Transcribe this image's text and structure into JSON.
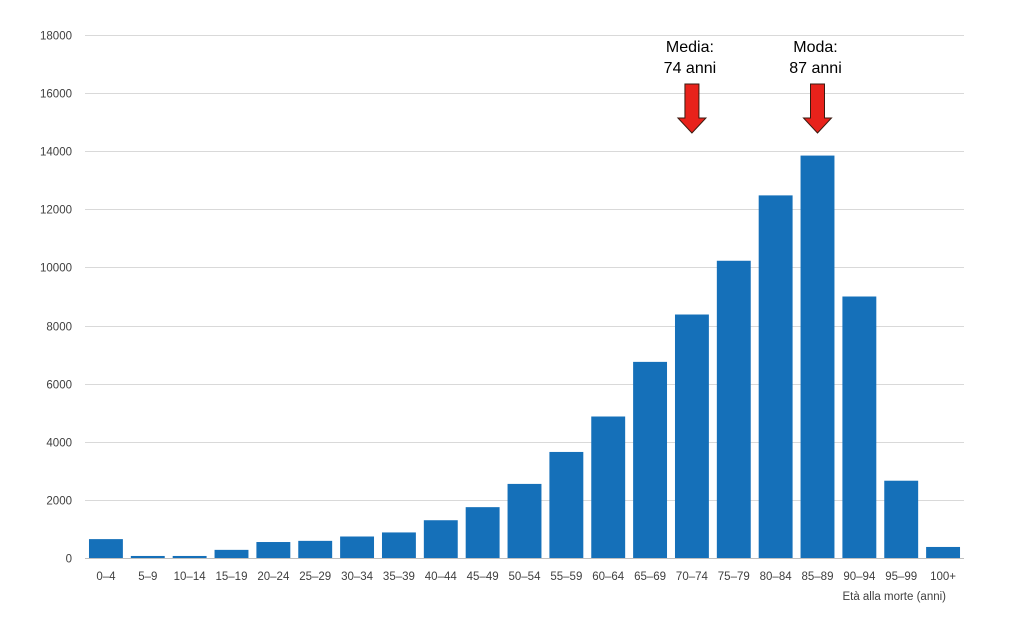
{
  "chart_data": {
    "type": "bar",
    "xlabel": "Età alla morte (anni)",
    "ylabel": "",
    "ylim": [
      0,
      18000
    ],
    "yticks": [
      0,
      2000,
      4000,
      6000,
      8000,
      10000,
      12000,
      14000,
      16000,
      18000
    ],
    "grid": "horizontal",
    "legend": "none",
    "categories": [
      "0–4",
      "5–9",
      "10–14",
      "15–19",
      "20–24",
      "25–29",
      "30–34",
      "35–39",
      "40–44",
      "45–49",
      "50–54",
      "55–59",
      "60–64",
      "65–69",
      "70–74",
      "75–79",
      "80–84",
      "85–89",
      "90–94",
      "95–99",
      "100+"
    ],
    "values": [
      650,
      70,
      70,
      280,
      550,
      590,
      740,
      880,
      1300,
      1750,
      2550,
      3650,
      4870,
      6750,
      8380,
      10230,
      12480,
      13850,
      9000,
      2660,
      380
    ],
    "bar_color": "#1570b9",
    "annotations": [
      {
        "line1": "Media:",
        "line2": "74 anni",
        "value": 74,
        "arrow_color": "#e8221b"
      },
      {
        "line1": "Moda:",
        "line2": "87 anni",
        "value": 87,
        "arrow_color": "#e8221b"
      }
    ]
  }
}
